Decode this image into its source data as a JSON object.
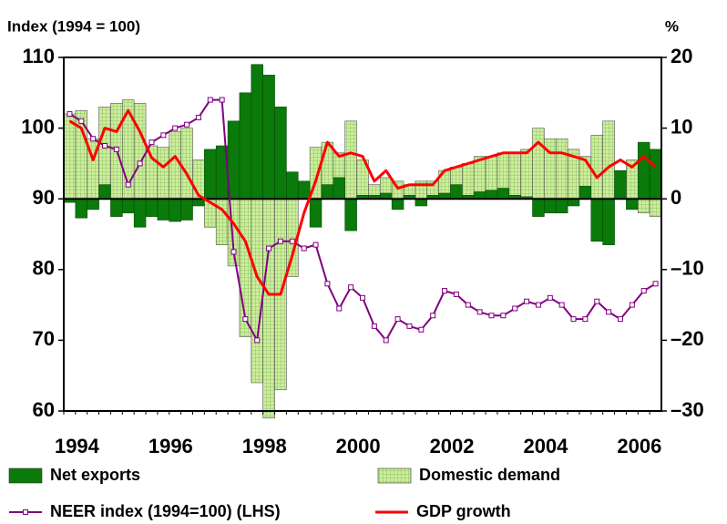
{
  "chart_data": {
    "type": "combo",
    "y_label": "Index (1994 = 100)",
    "y2_label": "%",
    "categories": [
      "1994",
      null,
      null,
      null,
      null,
      null,
      null,
      null,
      "1996",
      null,
      null,
      null,
      null,
      null,
      null,
      null,
      "1998",
      null,
      null,
      null,
      null,
      null,
      null,
      null,
      "2000",
      null,
      null,
      null,
      null,
      null,
      null,
      null,
      "2002",
      null,
      null,
      null,
      null,
      null,
      null,
      null,
      "2004",
      null,
      null,
      null,
      null,
      null,
      null,
      null,
      "2006",
      null,
      null
    ],
    "ylim": [
      60,
      110
    ],
    "yticks": [
      60,
      70,
      80,
      90,
      100,
      110
    ],
    "y2lim": [
      -30,
      20
    ],
    "y2ticks": [
      {
        "value": -30,
        "label": "–30"
      },
      {
        "value": -20,
        "label": "–20"
      },
      {
        "value": -10,
        "label": "–10"
      },
      0,
      10,
      20
    ],
    "series": [
      {
        "name": "Domestic demand",
        "type": "bar",
        "axis": "y2",
        "color": "#ccee99",
        "values": [
          12,
          12.5,
          8.5,
          13,
          13.5,
          14,
          13.5,
          7.5,
          7.3,
          9.5,
          10,
          5.5,
          -4,
          -6.5,
          -9.5,
          -19.5,
          -26,
          -31,
          -27,
          -11,
          0.5,
          7.3,
          8,
          6.5,
          11,
          5.5,
          2,
          3,
          2.5,
          2,
          2.5,
          2.5,
          4,
          4.5,
          5,
          6,
          6,
          6.5,
          6.5,
          7,
          10,
          8.5,
          8.5,
          7,
          6,
          9,
          11,
          0.5,
          5.5,
          -2,
          -2.5
        ]
      },
      {
        "name": "Net exports",
        "type": "bar",
        "axis": "y2",
        "color": "#0a7a0a",
        "values": [
          -0.5,
          -2.7,
          -1.5,
          2,
          -2.5,
          -2,
          -4,
          -2.5,
          -3,
          -3.2,
          -3,
          -1,
          7,
          7.5,
          11,
          15,
          19,
          17.5,
          13,
          3.8,
          2.5,
          -4,
          2,
          3,
          -4.5,
          0.5,
          0.5,
          0.8,
          -1.5,
          0.5,
          -1,
          0.5,
          0.8,
          2,
          0.5,
          1,
          1.2,
          1.5,
          0.5,
          0.3,
          -2.5,
          -2,
          -2,
          -1,
          1.8,
          -6,
          -6.5,
          4,
          -1.5,
          8,
          7
        ]
      },
      {
        "name": "NEER index (1994=100) (LHS)",
        "type": "line",
        "axis": "y",
        "color": "#800080",
        "marker": "square",
        "values": [
          102,
          101,
          98.5,
          97.5,
          97,
          92,
          95,
          98,
          99,
          100,
          100.5,
          101.5,
          104,
          104,
          82.5,
          73,
          70,
          83,
          84,
          84,
          83,
          83.5,
          78,
          74.5,
          77.5,
          76,
          72,
          70,
          73,
          72,
          71.5,
          73.5,
          77,
          76.5,
          75,
          74,
          73.5,
          73.5,
          74.5,
          75.5,
          75,
          76,
          75,
          73,
          73,
          75.5,
          74,
          73,
          75,
          77,
          78
        ]
      },
      {
        "name": "GDP growth",
        "type": "line",
        "axis": "y2",
        "color": "#ff0000",
        "values": [
          11,
          10,
          5.5,
          10,
          9.5,
          12.5,
          9.5,
          5.8,
          4.5,
          6,
          3.5,
          0.5,
          -0.5,
          -1.5,
          -3.5,
          -6,
          -11,
          -13.5,
          -13.5,
          -8,
          -2,
          2.5,
          8,
          6,
          6.5,
          6,
          2.5,
          4,
          1.5,
          2,
          2,
          2,
          4,
          4.5,
          5,
          5.5,
          6,
          6.5,
          6.5,
          6.5,
          8,
          6.5,
          6.5,
          6,
          5.5,
          3,
          4.5,
          5.5,
          4.5,
          6,
          4.5
        ]
      }
    ]
  }
}
